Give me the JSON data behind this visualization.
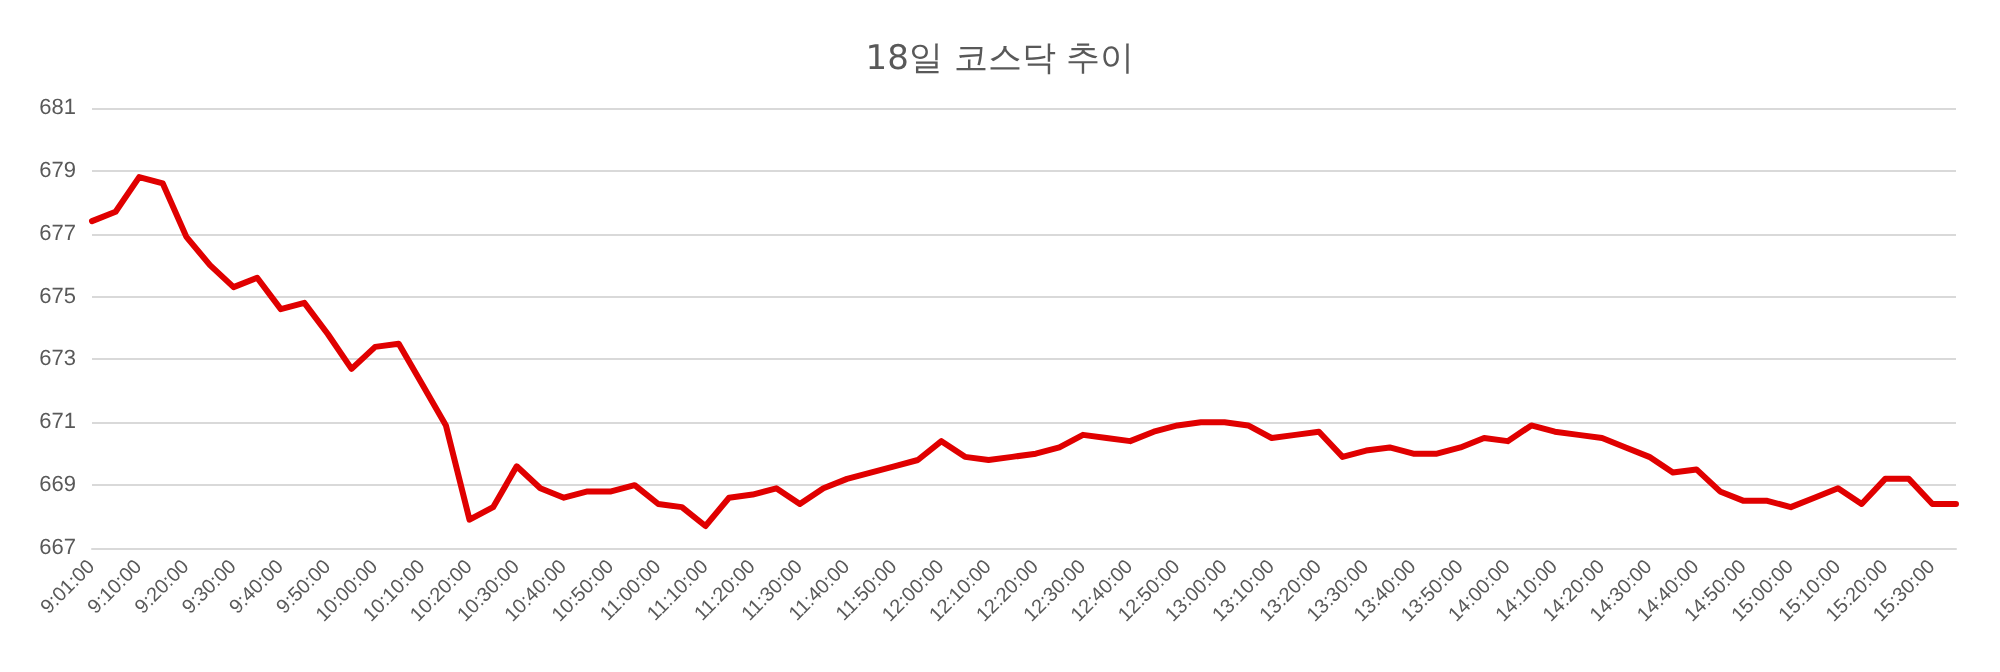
{
  "chart_data": {
    "type": "line",
    "title": "18일 코스닥 추이",
    "categories": [
      "9:01:00",
      null,
      "9:10:00",
      null,
      "9:20:00",
      null,
      "9:30:00",
      null,
      "9:40:00",
      null,
      "9:50:00",
      null,
      "10:00:00",
      null,
      "10:10:00",
      null,
      "10:20:00",
      null,
      "10:30:00",
      null,
      "10:40:00",
      null,
      "10:50:00",
      null,
      "11:00:00",
      null,
      "11:10:00",
      null,
      "11:20:00",
      null,
      "11:30:00",
      null,
      "11:40:00",
      null,
      "11:50:00",
      null,
      "12:00:00",
      null,
      "12:10:00",
      null,
      "12:20:00",
      null,
      "12:30:00",
      null,
      "12:40:00",
      null,
      "12:50:00",
      null,
      "13:00:00",
      null,
      "13:10:00",
      null,
      "13:20:00",
      null,
      "13:30:00",
      null,
      "13:40:00",
      null,
      "13:50:00",
      null,
      "14:00:00",
      null,
      "14:10:00",
      null,
      "14:20:00",
      null,
      "14:30:00",
      null,
      "14:40:00",
      null,
      "14:50:00",
      null,
      "15:00:00",
      null,
      "15:10:00",
      null,
      "15:20:00",
      null,
      "15:30:00",
      null
    ],
    "series": [
      {
        "color": "#e00000",
        "values": [
          677.4,
          677.7,
          678.8,
          678.6,
          676.9,
          676.0,
          675.3,
          675.6,
          674.6,
          674.8,
          673.8,
          672.7,
          673.4,
          673.5,
          672.2,
          670.9,
          667.9,
          668.3,
          669.6,
          668.9,
          668.6,
          668.8,
          668.8,
          669.0,
          668.4,
          668.3,
          667.7,
          668.6,
          668.7,
          668.9,
          668.4,
          668.9,
          669.2,
          669.4,
          669.6,
          669.8,
          670.4,
          669.9,
          669.8,
          669.9,
          670.0,
          670.2,
          670.6,
          670.5,
          670.4,
          670.7,
          670.9,
          671.0,
          671.0,
          670.9,
          670.5,
          670.6,
          670.7,
          669.9,
          670.1,
          670.2,
          670.0,
          670.0,
          670.2,
          670.5,
          670.4,
          670.9,
          670.7,
          670.6,
          670.5,
          670.2,
          669.9,
          669.4,
          669.5,
          668.8,
          668.5,
          668.5,
          668.3,
          668.6,
          668.9,
          668.4,
          669.2,
          669.2,
          668.4,
          668.4
        ]
      }
    ],
    "ylim": [
      667,
      681
    ],
    "yticks": [
      667,
      669,
      671,
      673,
      675,
      677,
      679,
      681
    ],
    "grid": "y",
    "marker": "none",
    "line_style": "solid"
  }
}
